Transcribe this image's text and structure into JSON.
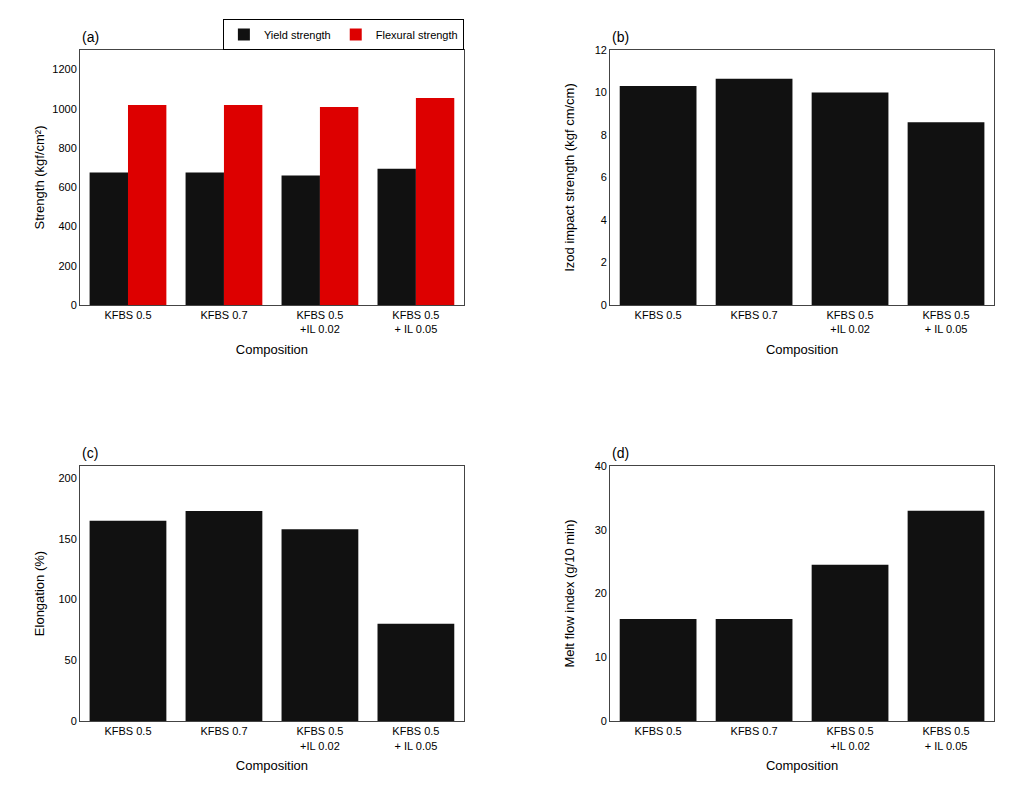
{
  "chart_data": [
    {
      "type": "bar",
      "title": "(a)",
      "categories": [
        "KFBS 0.5",
        "KFBS 0.7",
        "KFBS 0.5\n+IL 0.02",
        "KFBS 0.5\n+ IL 0.05"
      ],
      "series": [
        {
          "name": "Yield strength",
          "color": "#111111",
          "values": [
            675,
            675,
            660,
            695
          ]
        },
        {
          "name": "Flexural strength",
          "color": "#dd0000",
          "values": [
            1020,
            1020,
            1010,
            1055
          ]
        }
      ],
      "xlabel": "Composition",
      "ylabel": "Strength (kgf/cm²)",
      "ylim": [
        0,
        1300
      ],
      "yticks": [
        0,
        200,
        400,
        600,
        800,
        1000,
        1200
      ],
      "legend": "upper right",
      "grid": false
    },
    {
      "type": "bar",
      "title": "(b)",
      "categories": [
        "KFBS 0.5",
        "KFBS 0.7",
        "KFBS 0.5\n+IL 0.02",
        "KFBS 0.5\n+ IL 0.05"
      ],
      "values": [
        10.3,
        10.65,
        10.0,
        8.6
      ],
      "color": "#111111",
      "xlabel": "Composition",
      "ylabel": "Izod impact strength (kgf cm/cm)",
      "ylim": [
        0,
        12
      ],
      "yticks": [
        0,
        2,
        4,
        6,
        8,
        10,
        12
      ],
      "grid": false
    },
    {
      "type": "bar",
      "title": "(c)",
      "categories": [
        "KFBS 0.5",
        "KFBS 0.7",
        "KFBS 0.5\n+IL 0.02",
        "KFBS 0.5\n+ IL 0.05"
      ],
      "values": [
        165,
        173,
        158,
        80
      ],
      "color": "#111111",
      "xlabel": "Composition",
      "ylabel": "Elongation (%)",
      "ylim": [
        0,
        210
      ],
      "yticks": [
        0,
        50,
        100,
        150,
        200
      ],
      "grid": false
    },
    {
      "type": "bar",
      "title": "(d)",
      "categories": [
        "KFBS 0.5",
        "KFBS 0.7",
        "KFBS 0.5\n+IL 0.02",
        "KFBS 0.5\n+ IL 0.05"
      ],
      "values": [
        16.0,
        16.0,
        24.5,
        33.0
      ],
      "color": "#111111",
      "xlabel": "Composition",
      "ylabel": "Melt flow index (g/10 min)",
      "ylim": [
        0,
        40
      ],
      "yticks": [
        0,
        10,
        20,
        30,
        40
      ],
      "grid": false
    }
  ]
}
